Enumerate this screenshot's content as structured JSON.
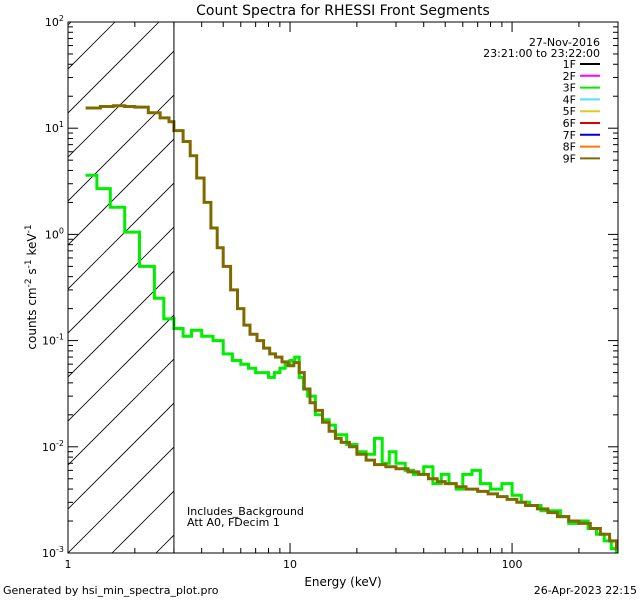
{
  "chart_data": {
    "type": "line",
    "title": "Count Spectra for RHESSI Front Segments",
    "xlabel": "Energy (keV)",
    "ylabel": "counts cm-2 s-1 keV-1",
    "xscale": "log",
    "yscale": "log",
    "xlim": [
      1,
      300
    ],
    "ylim": [
      0.001,
      100
    ],
    "x_ticks": [
      {
        "value": 1,
        "label": "1"
      },
      {
        "value": 10,
        "label": "10"
      },
      {
        "value": 100,
        "label": "100"
      }
    ],
    "y_ticks": [
      {
        "value": 0.001,
        "mant": "10",
        "exp": "-3"
      },
      {
        "value": 0.01,
        "mant": "10",
        "exp": "-2"
      },
      {
        "value": 0.1,
        "mant": "10",
        "exp": "-1"
      },
      {
        "value": 1,
        "mant": "10",
        "exp": "0"
      },
      {
        "value": 10,
        "mant": "10",
        "exp": "1"
      },
      {
        "value": 100,
        "mant": "10",
        "exp": "2"
      }
    ],
    "date": "27-Nov-2016",
    "time_range": "23:21:00 to 23:22:00",
    "legend": [
      {
        "label": "1F",
        "color": "#000000"
      },
      {
        "label": "2F",
        "color": "#ff00ff"
      },
      {
        "label": "3F",
        "color": "#00ee00"
      },
      {
        "label": "4F",
        "color": "#55ddff"
      },
      {
        "label": "5F",
        "color": "#ddcc22"
      },
      {
        "label": "6F",
        "color": "#dd0000"
      },
      {
        "label": "7F",
        "color": "#0000cc"
      },
      {
        "label": "8F",
        "color": "#ff7700"
      },
      {
        "label": "9F",
        "color": "#7f6a00"
      }
    ],
    "hatched_region_max_keV": 3.0,
    "annotations": [
      "Includes_Background",
      "Att A0, FDecim 1"
    ],
    "series": [
      {
        "name": "3F",
        "color": "#00ee00",
        "points": [
          [
            1.2,
            3.6
          ],
          [
            1.35,
            2.7
          ],
          [
            1.55,
            1.8
          ],
          [
            1.8,
            1.05
          ],
          [
            2.1,
            0.5
          ],
          [
            2.45,
            0.25
          ],
          [
            2.7,
            0.16
          ],
          [
            3.0,
            0.13
          ],
          [
            3.3,
            0.11
          ],
          [
            3.6,
            0.125
          ],
          [
            4.0,
            0.11
          ],
          [
            4.5,
            0.1
          ],
          [
            5.0,
            0.075
          ],
          [
            5.5,
            0.065
          ],
          [
            6.0,
            0.06
          ],
          [
            6.5,
            0.055
          ],
          [
            7.0,
            0.05
          ],
          [
            7.5,
            0.05
          ],
          [
            8.0,
            0.045
          ],
          [
            8.5,
            0.05
          ],
          [
            9.0,
            0.055
          ],
          [
            9.5,
            0.06
          ],
          [
            10.0,
            0.065
          ],
          [
            10.5,
            0.07
          ],
          [
            11.0,
            0.045
          ],
          [
            11.5,
            0.035
          ],
          [
            12.0,
            0.03
          ],
          [
            13.0,
            0.02
          ],
          [
            14.0,
            0.018
          ],
          [
            15.0,
            0.016
          ],
          [
            16.0,
            0.013
          ],
          [
            18.0,
            0.0105
          ],
          [
            20.0,
            0.009
          ],
          [
            22.0,
            0.0085
          ],
          [
            24.0,
            0.012
          ],
          [
            26.0,
            0.007
          ],
          [
            28.0,
            0.009
          ],
          [
            30.0,
            0.007
          ],
          [
            33.0,
            0.006
          ],
          [
            36.0,
            0.0055
          ],
          [
            40.0,
            0.0065
          ],
          [
            44.0,
            0.0045
          ],
          [
            48.0,
            0.0055
          ],
          [
            52.0,
            0.0045
          ],
          [
            56.0,
            0.004
          ],
          [
            60.0,
            0.0055
          ],
          [
            66.0,
            0.006
          ],
          [
            72.0,
            0.0045
          ],
          [
            80.0,
            0.004
          ],
          [
            90.0,
            0.0045
          ],
          [
            100.0,
            0.0035
          ],
          [
            110.0,
            0.003
          ],
          [
            120.0,
            0.0028
          ],
          [
            135.0,
            0.0025
          ],
          [
            150.0,
            0.0025
          ],
          [
            165.0,
            0.0022
          ],
          [
            180.0,
            0.0019
          ],
          [
            200.0,
            0.002
          ],
          [
            220.0,
            0.0017
          ],
          [
            240.0,
            0.0015
          ],
          [
            260.0,
            0.0013
          ],
          [
            280.0,
            0.0011
          ],
          [
            295.0,
            0.001
          ]
        ]
      },
      {
        "name": "9F",
        "color": "#7f6a00",
        "points": [
          [
            1.2,
            15.5
          ],
          [
            1.4,
            16.0
          ],
          [
            1.6,
            16.3
          ],
          [
            1.8,
            16.0
          ],
          [
            2.0,
            15.8
          ],
          [
            2.3,
            14.0
          ],
          [
            2.6,
            12.5
          ],
          [
            2.85,
            11.5
          ],
          [
            3.0,
            9.5
          ],
          [
            3.3,
            7.5
          ],
          [
            3.55,
            5.5
          ],
          [
            3.8,
            3.4
          ],
          [
            4.1,
            2.0
          ],
          [
            4.4,
            1.15
          ],
          [
            4.7,
            0.75
          ],
          [
            5.0,
            0.5
          ],
          [
            5.4,
            0.3
          ],
          [
            5.8,
            0.2
          ],
          [
            6.2,
            0.14
          ],
          [
            6.6,
            0.115
          ],
          [
            7.1,
            0.1
          ],
          [
            7.6,
            0.085
          ],
          [
            8.1,
            0.075
          ],
          [
            8.6,
            0.07
          ],
          [
            9.2,
            0.063
          ],
          [
            9.8,
            0.058
          ],
          [
            10.4,
            0.062
          ],
          [
            11.0,
            0.05
          ],
          [
            11.6,
            0.035
          ],
          [
            12.3,
            0.026
          ],
          [
            13.0,
            0.022
          ],
          [
            14.0,
            0.017
          ],
          [
            15.0,
            0.014
          ],
          [
            16.0,
            0.012
          ],
          [
            17.0,
            0.011
          ],
          [
            18.5,
            0.01
          ],
          [
            20.0,
            0.0085
          ],
          [
            22.0,
            0.0075
          ],
          [
            24.0,
            0.0068
          ],
          [
            27.0,
            0.0065
          ],
          [
            30.0,
            0.0062
          ],
          [
            34.0,
            0.0058
          ],
          [
            38.0,
            0.0055
          ],
          [
            42.0,
            0.005
          ],
          [
            46.0,
            0.0047
          ],
          [
            50.0,
            0.0045
          ],
          [
            56.0,
            0.0042
          ],
          [
            62.0,
            0.004
          ],
          [
            70.0,
            0.0038
          ],
          [
            78.0,
            0.0036
          ],
          [
            86.0,
            0.0034
          ],
          [
            95.0,
            0.0032
          ],
          [
            105.0,
            0.003
          ],
          [
            115.0,
            0.0028
          ],
          [
            130.0,
            0.0026
          ],
          [
            145.0,
            0.0024
          ],
          [
            160.0,
            0.0022
          ],
          [
            180.0,
            0.002
          ],
          [
            200.0,
            0.0019
          ],
          [
            225.0,
            0.0017
          ],
          [
            250.0,
            0.0015
          ],
          [
            275.0,
            0.0013
          ],
          [
            295.0,
            0.0011
          ]
        ]
      }
    ]
  },
  "footer": {
    "generated_by": "Generated by hsi_min_spectra_plot.pro",
    "timestamp": "26-Apr-2023 22:15"
  }
}
